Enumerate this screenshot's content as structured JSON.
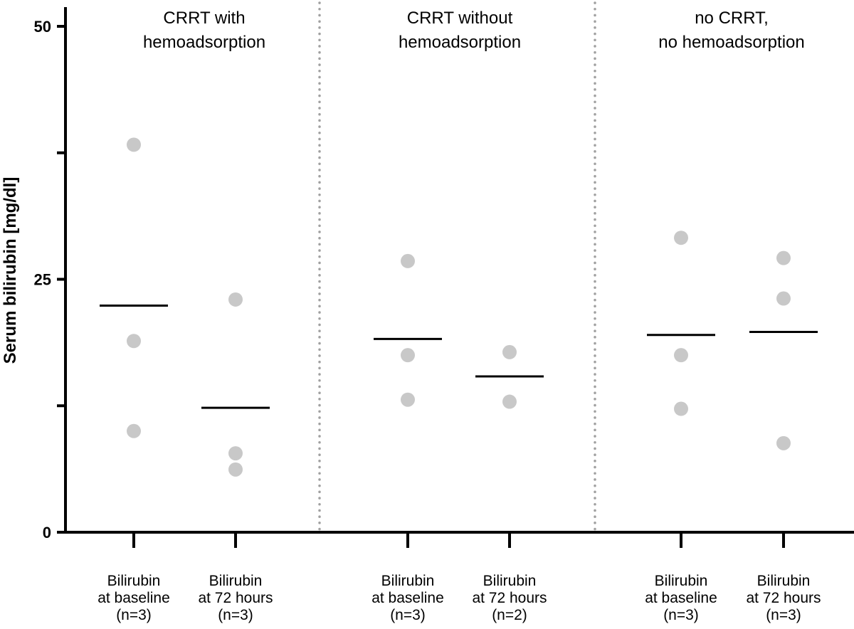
{
  "chart_data": {
    "type": "scatter",
    "ylabel": "Serum bilirubin [mg/dl]",
    "ylim": [
      0,
      50
    ],
    "yticks_labeled": [
      0,
      25,
      50
    ],
    "yticks_minor": [
      12.5,
      37.5
    ],
    "colors": {
      "point": "#c8c8c8",
      "mean": "#000000",
      "axis": "#000000",
      "divider": "#a0a0a0"
    },
    "groups": [
      {
        "title": [
          "CRRT with",
          "hemoadsorption"
        ],
        "categories": [
          {
            "label": [
              "Bilirubin",
              "at baseline",
              "(n=3)"
            ],
            "points": [
              38.3,
              18.9,
              10.0
            ],
            "mean": 22.4
          },
          {
            "label": [
              "Bilirubin",
              "at 72 hours",
              "(n=3)"
            ],
            "points": [
              23.0,
              7.8,
              6.2
            ],
            "mean": 12.3
          }
        ]
      },
      {
        "title": [
          "CRRT without",
          "hemoadsorption"
        ],
        "categories": [
          {
            "label": [
              "Bilirubin",
              "at baseline",
              "(n=3)"
            ],
            "points": [
              26.8,
              17.5,
              13.1
            ],
            "mean": 19.1
          },
          {
            "label": [
              "Bilirubin",
              "at 72 hours",
              "(n=2)"
            ],
            "points": [
              17.8,
              12.9
            ],
            "mean": 15.4
          }
        ]
      },
      {
        "title": [
          "no CRRT,",
          "no hemoadsorption"
        ],
        "categories": [
          {
            "label": [
              "Bilirubin",
              "at baseline",
              "(n=3)"
            ],
            "points": [
              29.1,
              17.5,
              12.2
            ],
            "mean": 19.5
          },
          {
            "label": [
              "Bilirubin",
              "at 72 hours",
              "(n=3)"
            ],
            "points": [
              27.1,
              23.1,
              8.8
            ],
            "mean": 19.8
          }
        ]
      }
    ]
  }
}
